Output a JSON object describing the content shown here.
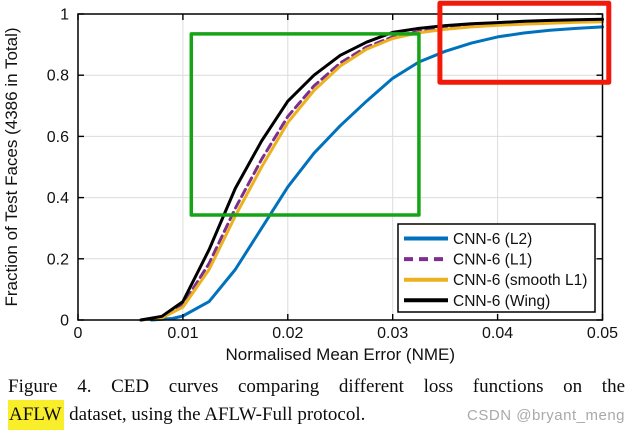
{
  "chart_data": {
    "type": "line",
    "title": "",
    "xlabel": "Normalised Mean Error (NME)",
    "ylabel": "Fraction of Test Faces (4386 in Total)",
    "xlim": [
      0,
      0.05
    ],
    "ylim": [
      0,
      1
    ],
    "xticks": [
      0,
      0.01,
      0.02,
      0.03,
      0.04,
      0.05
    ],
    "xtick_labels": [
      "0",
      "0.01",
      "0.02",
      "0.03",
      "0.04",
      "0.05"
    ],
    "yticks": [
      0,
      0.2,
      0.4,
      0.6,
      0.8,
      1
    ],
    "ytick_labels": [
      "0",
      "0.2",
      "0.4",
      "0.6",
      "0.8",
      "1"
    ],
    "grid": true,
    "grid_color": "#dcdcdc",
    "legend_position": "lower right",
    "series": [
      {
        "name": "CNN-6 (L2)",
        "color": "#0072BD",
        "dash": "solid",
        "x": [
          0.007,
          0.009,
          0.01,
          0.0125,
          0.015,
          0.0175,
          0.02,
          0.0225,
          0.025,
          0.0275,
          0.03,
          0.0325,
          0.035,
          0.0375,
          0.04,
          0.0425,
          0.045,
          0.0475,
          0.05
        ],
        "y": [
          0,
          0.005,
          0.013,
          0.06,
          0.165,
          0.3,
          0.435,
          0.545,
          0.635,
          0.715,
          0.79,
          0.843,
          0.878,
          0.905,
          0.925,
          0.938,
          0.947,
          0.953,
          0.958
        ]
      },
      {
        "name": "CNN-6 (L1)",
        "color": "#7E2F8E",
        "dash": "dashed",
        "x": [
          0.006,
          0.008,
          0.01,
          0.0125,
          0.015,
          0.0175,
          0.02,
          0.0225,
          0.025,
          0.0275,
          0.03,
          0.0325,
          0.035,
          0.0375,
          0.04,
          0.0425,
          0.045,
          0.0475,
          0.05
        ],
        "y": [
          0,
          0.009,
          0.05,
          0.185,
          0.365,
          0.525,
          0.665,
          0.765,
          0.84,
          0.892,
          0.925,
          0.943,
          0.954,
          0.961,
          0.966,
          0.97,
          0.973,
          0.976,
          0.978
        ]
      },
      {
        "name": "CNN-6 (smooth L1)",
        "color": "#EDB120",
        "dash": "solid",
        "x": [
          0.006,
          0.008,
          0.01,
          0.0125,
          0.015,
          0.0175,
          0.02,
          0.0225,
          0.025,
          0.0275,
          0.03,
          0.0325,
          0.035,
          0.0375,
          0.04,
          0.0425,
          0.045,
          0.0475,
          0.05
        ],
        "y": [
          0,
          0.007,
          0.042,
          0.165,
          0.34,
          0.5,
          0.645,
          0.75,
          0.83,
          0.885,
          0.92,
          0.939,
          0.95,
          0.958,
          0.963,
          0.967,
          0.97,
          0.973,
          0.975
        ]
      },
      {
        "name": "CNN-6 (Wing)",
        "color": "#000000",
        "dash": "solid",
        "x": [
          0.006,
          0.008,
          0.01,
          0.0125,
          0.015,
          0.0175,
          0.02,
          0.0225,
          0.025,
          0.0275,
          0.03,
          0.0325,
          0.035,
          0.0375,
          0.04,
          0.0425,
          0.045,
          0.0475,
          0.05
        ],
        "y": [
          0,
          0.012,
          0.06,
          0.23,
          0.43,
          0.585,
          0.715,
          0.8,
          0.865,
          0.908,
          0.94,
          0.953,
          0.962,
          0.968,
          0.972,
          0.976,
          0.979,
          0.981,
          0.983
        ]
      }
    ],
    "annotations": [
      {
        "name": "green-roi-box",
        "type": "rect",
        "color": "#17A317",
        "stroke_width": 3.5,
        "x0": 0.0108,
        "x1": 0.0325,
        "y0": 0.343,
        "y1": 0.935
      },
      {
        "name": "red-roi-box",
        "type": "rect",
        "color": "#F2190A",
        "stroke_width": 5,
        "x0": 0.0345,
        "x1": 0.0506,
        "y0": 0.777,
        "y1": 1.035
      }
    ]
  },
  "caption": {
    "line1": "Figure 4. CED curves comparing different loss functions on the",
    "highlight": "AFLW",
    "line2_rest": " dataset, using the AFLW-Full protocol.",
    "watermark": "CSDN @bryant_meng",
    "highlight_color": "#F8EE2A",
    "watermark_color": "#A9A9A9"
  }
}
